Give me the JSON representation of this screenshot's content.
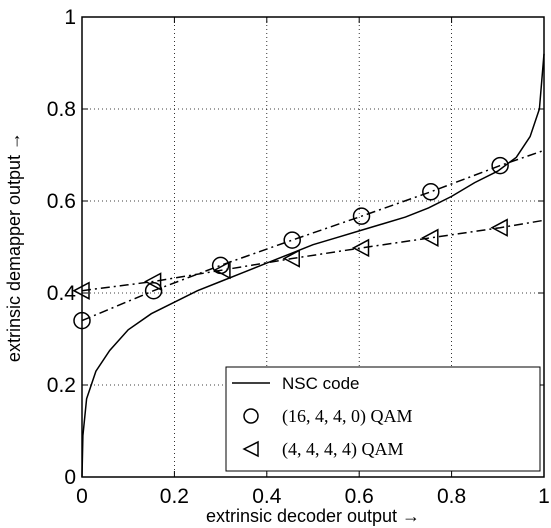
{
  "chart_data": {
    "type": "line",
    "xlabel": "extrinsic decoder output →",
    "ylabel": "extrinsic demapper output →",
    "xlim": [
      0,
      1
    ],
    "ylim": [
      0,
      1
    ],
    "xticks": [
      "0",
      "0.2",
      "0.4",
      "0.6",
      "0.8",
      "1"
    ],
    "yticks": [
      "0",
      "0.2",
      "0.4",
      "0.6",
      "0.8",
      "1"
    ],
    "grid": true,
    "legend_position": "bottom-right",
    "series": [
      {
        "name": "NSC code",
        "line_style": "solid",
        "marker": "none",
        "x": [
          0.0,
          0.002,
          0.01,
          0.03,
          0.06,
          0.1,
          0.15,
          0.2,
          0.25,
          0.3,
          0.35,
          0.4,
          0.45,
          0.5,
          0.55,
          0.6,
          0.65,
          0.7,
          0.75,
          0.8,
          0.85,
          0.9,
          0.94,
          0.97,
          0.99,
          1.0
        ],
        "y": [
          0.0,
          0.09,
          0.17,
          0.23,
          0.275,
          0.32,
          0.355,
          0.38,
          0.405,
          0.425,
          0.445,
          0.465,
          0.485,
          0.505,
          0.52,
          0.535,
          0.55,
          0.565,
          0.585,
          0.61,
          0.64,
          0.665,
          0.695,
          0.74,
          0.8,
          0.92
        ]
      },
      {
        "name": "(16, 4, 4, 0) QAM",
        "line_style": "dashdot",
        "marker": "circle",
        "x": [
          0.0,
          0.155,
          0.3,
          0.455,
          0.605,
          0.755,
          0.905,
          1.0
        ],
        "y": [
          0.34,
          0.405,
          0.46,
          0.515,
          0.567,
          0.62,
          0.677,
          0.71
        ]
      },
      {
        "name": "(4, 4, 4, 4) QAM",
        "line_style": "dashdot",
        "marker": "triangle-left",
        "x": [
          0.0,
          0.155,
          0.305,
          0.455,
          0.605,
          0.755,
          0.905,
          1.0
        ],
        "y": [
          0.405,
          0.425,
          0.45,
          0.475,
          0.498,
          0.52,
          0.542,
          0.558
        ]
      }
    ]
  }
}
